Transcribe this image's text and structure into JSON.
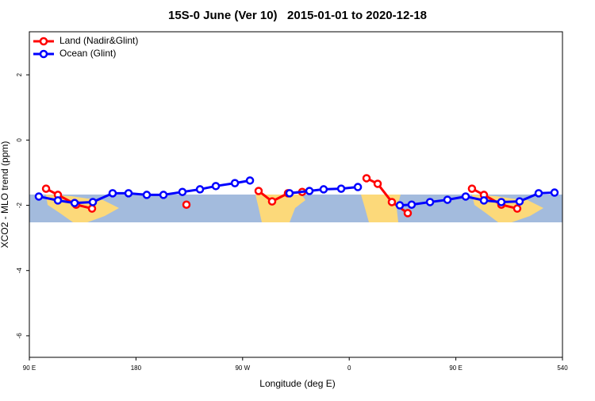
{
  "chart_data": {
    "type": "line",
    "title": "15S-0 June (Ver 10)   2015-01-01 to 2020-12-18",
    "x_label": "Longitude (deg E)",
    "y_label": "XCO2 - MLO trend (ppm)",
    "xlim": [
      90,
      540
    ],
    "xticks": [
      {
        "value": 90,
        "label": "90 E"
      },
      180,
      {
        "value": 270,
        "label": "90 W"
      },
      {
        "value": 360,
        "label": "0"
      },
      {
        "value": 450,
        "label": "90 E"
      },
      540
    ],
    "ylim": [
      -6.66,
      3.32
    ],
    "yticks": [
      2,
      0,
      -2,
      -4,
      -6
    ],
    "legend": "top-left",
    "series": [
      {
        "name": "Land (Nadir&Glint)",
        "color": "#ff0000",
        "x": [
          104.1,
          114.1,
          129.5,
          142.9,
          null,
          222.6,
          null,
          283.5,
          294.9,
          308.3,
          320.3,
          null,
          374.6,
          384.0,
          396.0,
          409.4,
          null,
          463.6,
          473.7,
          488.4,
          501.8
        ],
        "values": [
          -1.49,
          -1.68,
          -1.98,
          -2.1,
          null,
          -1.98,
          null,
          -1.56,
          -1.88,
          -1.63,
          -1.59,
          null,
          -1.17,
          -1.34,
          -1.9,
          -2.24,
          null,
          -1.49,
          -1.68,
          -1.98,
          -2.1
        ]
      },
      {
        "name": "Ocean (Glint)",
        "color": "#0000ff",
        "x": [
          98.0,
          114.1,
          128.2,
          143.6,
          160.3,
          173.7,
          189.1,
          203.2,
          219.2,
          234.0,
          247.4,
          263.5,
          276.2,
          null,
          309.6,
          326.4,
          338.4,
          353.2,
          367.3,
          null,
          402.7,
          412.7,
          428.2,
          442.9,
          458.3,
          473.7,
          488.4,
          503.8,
          519.9,
          533.3
        ],
        "values": [
          -1.73,
          -1.85,
          -1.93,
          -1.9,
          -1.63,
          -1.63,
          -1.68,
          -1.68,
          -1.59,
          -1.51,
          -1.41,
          -1.32,
          -1.24,
          null,
          -1.63,
          -1.56,
          -1.51,
          -1.49,
          -1.44,
          null,
          -2.0,
          -1.98,
          -1.9,
          -1.83,
          -1.73,
          -1.85,
          -1.9,
          -1.88,
          -1.63,
          -1.61
        ]
      }
    ]
  }
}
